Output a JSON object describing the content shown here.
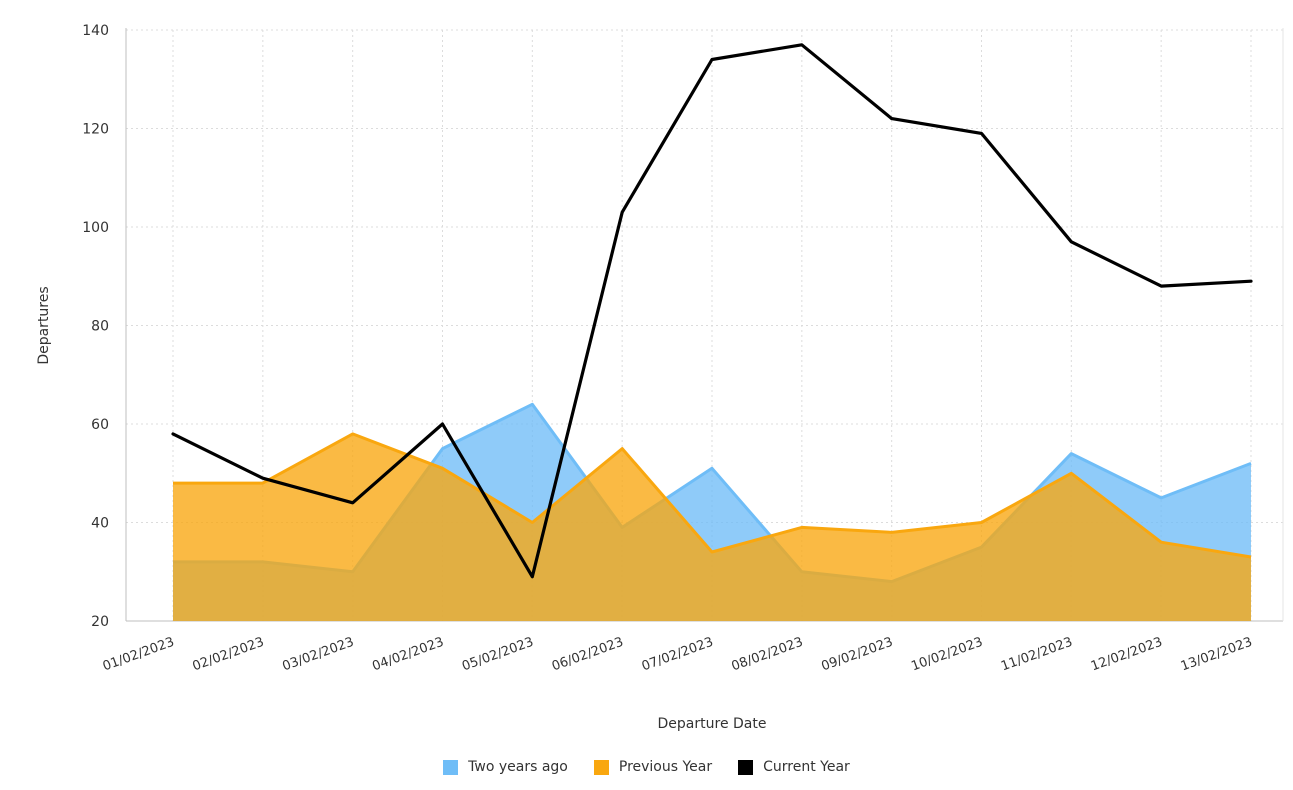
{
  "chart_data": {
    "type": "area",
    "title": "",
    "xlabel": "Departure Date",
    "ylabel": "Departures",
    "ylim": [
      20,
      140
    ],
    "yticks": [
      20,
      40,
      60,
      80,
      100,
      120,
      140
    ],
    "grid": true,
    "legend_position": "bottom-center",
    "categories": [
      "01/02/2023",
      "02/02/2023",
      "03/02/2023",
      "04/02/2023",
      "05/02/2023",
      "06/02/2023",
      "07/02/2023",
      "08/02/2023",
      "09/02/2023",
      "10/02/2023",
      "11/02/2023",
      "12/02/2023",
      "13/02/2023"
    ],
    "series": [
      {
        "name": "Two years ago",
        "type": "area",
        "color": "#6fbdf7",
        "values": [
          32,
          32,
          30,
          55,
          64,
          39,
          51,
          30,
          28,
          35,
          54,
          45,
          52
        ]
      },
      {
        "name": "Previous Year",
        "type": "area",
        "color": "#f9a70f",
        "values": [
          48,
          48,
          58,
          51,
          40,
          55,
          34,
          39,
          38,
          40,
          50,
          36,
          33
        ]
      },
      {
        "name": "Current Year",
        "type": "line",
        "color": "#000000",
        "values": [
          58,
          49,
          44,
          60,
          29,
          103,
          134,
          137,
          122,
          119,
          97,
          88,
          89
        ]
      }
    ]
  }
}
